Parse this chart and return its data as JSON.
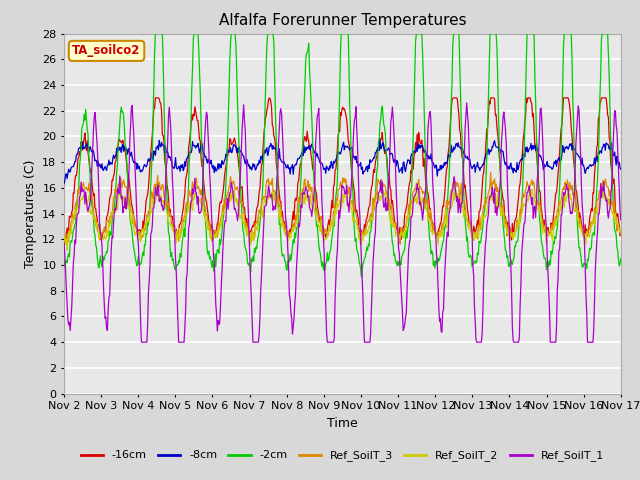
{
  "title": "Alfalfa Forerunner Temperatures",
  "xlabel": "Time",
  "ylabel": "Temperatures (C)",
  "ylim": [
    0,
    28
  ],
  "yticks": [
    0,
    2,
    4,
    6,
    8,
    10,
    12,
    14,
    16,
    18,
    20,
    22,
    24,
    26,
    28
  ],
  "bg_color": "#d8d8d8",
  "plot_bg_color": "#e8e8e8",
  "grid_color": "white",
  "series": [
    {
      "label": "-16cm",
      "color": "#dd0000"
    },
    {
      "label": "-8cm",
      "color": "#0000cc"
    },
    {
      "label": "-2cm",
      "color": "#00cc00"
    },
    {
      "label": "Ref_SoilT_3",
      "color": "#dd8800"
    },
    {
      "label": "Ref_SoilT_2",
      "color": "#cccc00"
    },
    {
      "label": "Ref_SoilT_1",
      "color": "#aa00cc"
    }
  ],
  "annotation_text": "TA_soilco2",
  "annotation_bg": "#ffffcc",
  "annotation_border": "#cc8800",
  "annotation_text_color": "#cc0000",
  "x_tick_labels": [
    "Nov 2",
    "Nov 3",
    "Nov 4",
    "Nov 5",
    "Nov 6",
    "Nov 7",
    "Nov 8",
    "Nov 9",
    "Nov 10",
    "Nov 11",
    "Nov 12",
    "Nov 13",
    "Nov 14",
    "Nov 15",
    "Nov 16",
    "Nov 17"
  ],
  "n_days": 15,
  "pts_per_day": 48
}
